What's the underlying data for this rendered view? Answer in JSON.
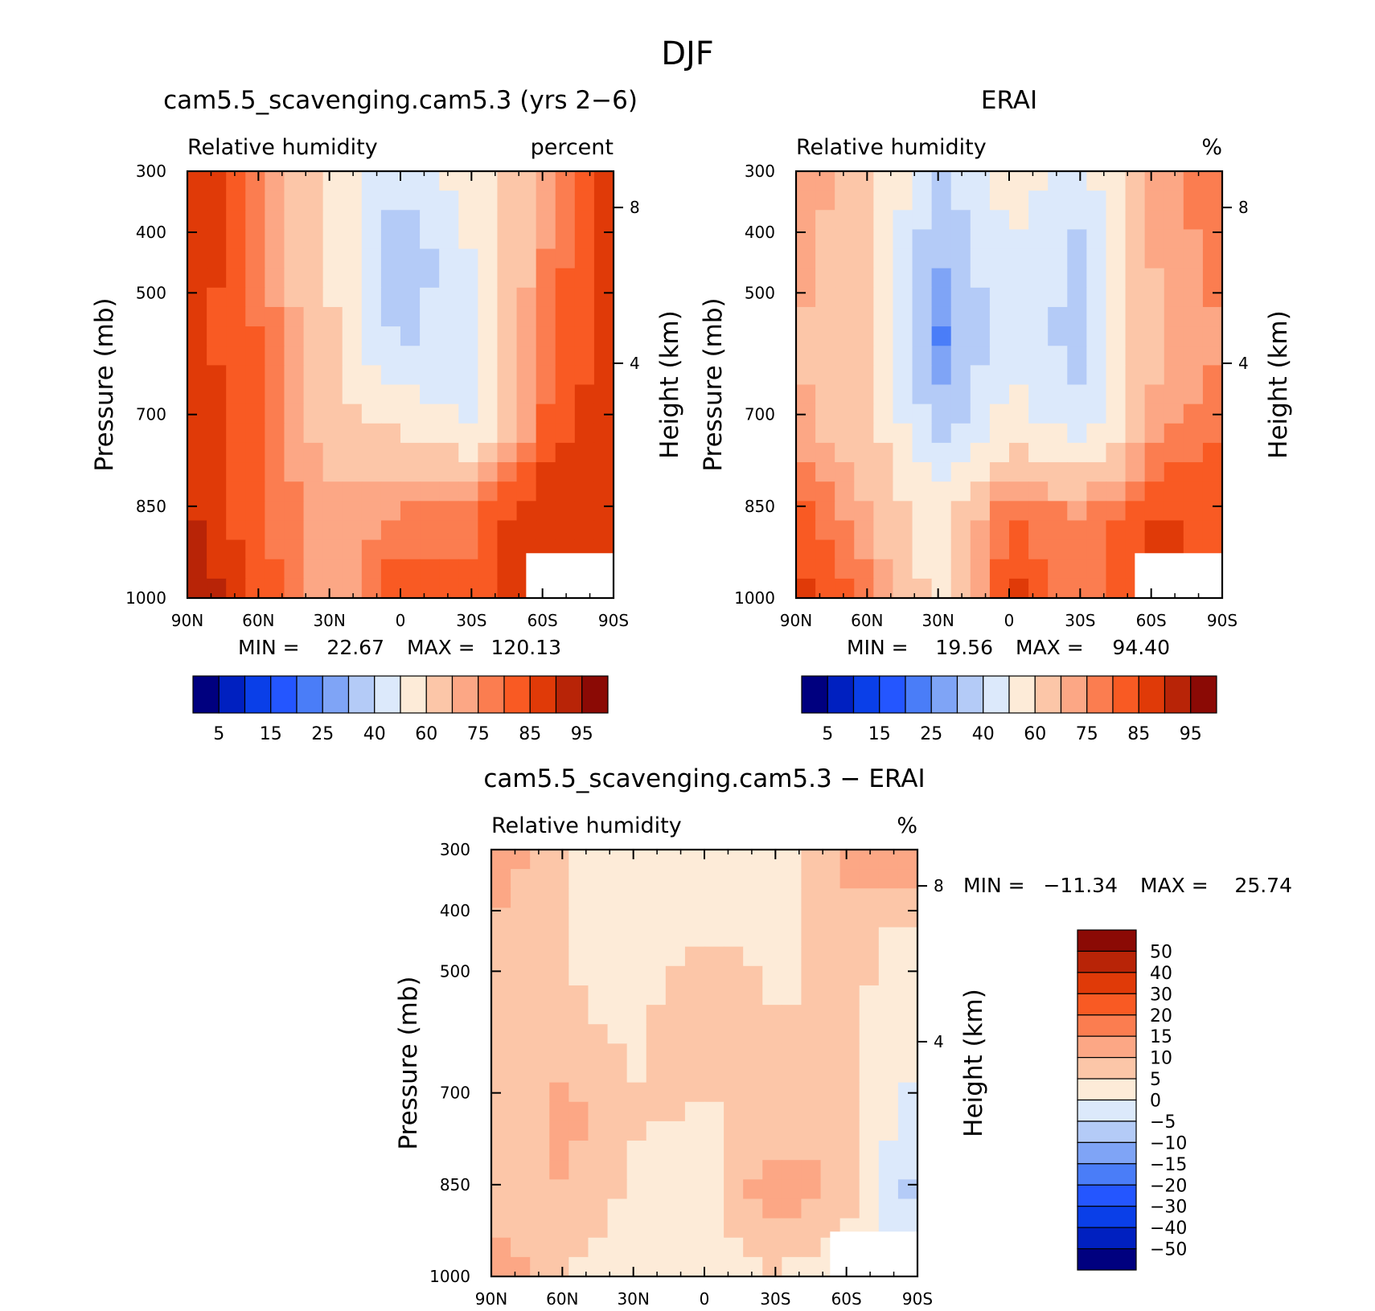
{
  "figure": {
    "title": "DJF"
  },
  "chart_data": [
    {
      "type": "heatmap",
      "title": "cam5.5_scavenging.cam5.3 (yrs 2−6)",
      "variable_label": "Relative humidity",
      "units_label": "percent",
      "ylabel": "Pressure (mb)",
      "ylabel_right": "Height (km)",
      "x_ticks": [
        "90N",
        "60N",
        "30N",
        "0",
        "30S",
        "60S",
        "90S"
      ],
      "y_ticks": [
        "300",
        "400",
        "500",
        "700",
        "850",
        "1000"
      ],
      "y_ticks_right": [
        "8",
        "4"
      ],
      "min_label": "MIN =",
      "min_value": "22.67",
      "max_label": "MAX =",
      "max_value": "120.13",
      "colorbar_labels": [
        "5",
        "15",
        "25",
        "40",
        "60",
        "75",
        "85",
        "95"
      ],
      "x": [
        "90N",
        "60N",
        "30N",
        "0",
        "30S",
        "60S",
        "90S"
      ],
      "y": [
        300,
        400,
        500,
        700,
        850,
        1000
      ],
      "z": [
        [
          92,
          75,
          58,
          42,
          55,
          70,
          90
        ],
        [
          90,
          78,
          60,
          30,
          50,
          75,
          90
        ],
        [
          88,
          80,
          62,
          38,
          48,
          78,
          88
        ],
        [
          88,
          82,
          65,
          58,
          50,
          80,
          90
        ],
        [
          90,
          80,
          72,
          75,
          80,
          90,
          90
        ],
        [
          97,
          85,
          70,
          85,
          80,
          90,
          85
        ]
      ]
    },
    {
      "type": "heatmap",
      "title": "ERAI",
      "variable_label": "Relative humidity",
      "units_label": "%",
      "ylabel": "Pressure (mb)",
      "ylabel_right": "Height (km)",
      "x_ticks": [
        "90N",
        "60N",
        "30N",
        "0",
        "30S",
        "60S",
        "90S"
      ],
      "y_ticks": [
        "300",
        "400",
        "500",
        "700",
        "850",
        "1000"
      ],
      "y_ticks_right": [
        "8",
        "4"
      ],
      "min_label": "MIN =",
      "min_value": "19.56",
      "max_label": "MAX =",
      "max_value": "94.40",
      "colorbar_labels": [
        "5",
        "15",
        "25",
        "40",
        "60",
        "75",
        "85",
        "95"
      ],
      "x": [
        "90N",
        "60N",
        "30N",
        "0",
        "30S",
        "60S",
        "90S"
      ],
      "y": [
        300,
        400,
        500,
        700,
        850,
        1000
      ],
      "z": [
        [
          75,
          65,
          40,
          55,
          45,
          70,
          80
        ],
        [
          72,
          65,
          30,
          50,
          38,
          70,
          78
        ],
        [
          70,
          65,
          22,
          48,
          35,
          68,
          75
        ],
        [
          72,
          65,
          35,
          55,
          45,
          72,
          80
        ],
        [
          82,
          70,
          55,
          80,
          75,
          85,
          85
        ],
        [
          88,
          80,
          55,
          88,
          75,
          88,
          80
        ]
      ]
    },
    {
      "type": "heatmap",
      "title": "cam5.5_scavenging.cam5.3 − ERAI",
      "variable_label": "Relative humidity",
      "units_label": "%",
      "ylabel": "Pressure (mb)",
      "ylabel_right": "Height (km)",
      "x_ticks": [
        "90N",
        "60N",
        "30N",
        "0",
        "30S",
        "60S",
        "90S"
      ],
      "y_ticks": [
        "300",
        "400",
        "500",
        "700",
        "850",
        "1000"
      ],
      "y_ticks_right": [
        "8",
        "4"
      ],
      "min_label": "MIN =",
      "min_value": "−11.34",
      "max_label": "MAX =",
      "max_value": "25.74",
      "colorbar_labels": [
        "50",
        "40",
        "30",
        "20",
        "15",
        "10",
        "5",
        "0",
        "−5",
        "−10",
        "−15",
        "−20",
        "−30",
        "−40",
        "−50"
      ],
      "x": [
        "90N",
        "60N",
        "30N",
        "0",
        "30S",
        "60S",
        "90S"
      ],
      "y": [
        300,
        400,
        500,
        700,
        850,
        1000
      ],
      "z": [
        [
          15,
          5,
          3,
          0,
          3,
          12,
          15
        ],
        [
          8,
          5,
          2,
          5,
          4,
          6,
          4
        ],
        [
          5,
          6,
          3,
          10,
          5,
          6,
          2
        ],
        [
          5,
          12,
          6,
          5,
          5,
          8,
          -3
        ],
        [
          6,
          10,
          4,
          2,
          15,
          8,
          -8
        ],
        [
          15,
          4,
          3,
          2,
          4,
          2,
          0
        ]
      ]
    }
  ],
  "colors": {
    "rh_scale": [
      "#00007f",
      "#0020c0",
      "#0a3fe8",
      "#2456ff",
      "#4a7df8",
      "#7fa4f6",
      "#b4cbf7",
      "#dce9fb",
      "#fdebd8",
      "#fcc6a8",
      "#fca785",
      "#fb7d50",
      "#f95a23",
      "#e03a08",
      "#b82407",
      "#8b0a05"
    ],
    "diff_scale": [
      "#00007f",
      "#0020c0",
      "#0a3fe8",
      "#2456ff",
      "#4a7df8",
      "#7fa4f6",
      "#b4cbf7",
      "#dce9fb",
      "#fdebd8",
      "#fcc6a8",
      "#fca785",
      "#fb7d50",
      "#f95a23",
      "#e03a08",
      "#b82407",
      "#8b0a05"
    ]
  }
}
